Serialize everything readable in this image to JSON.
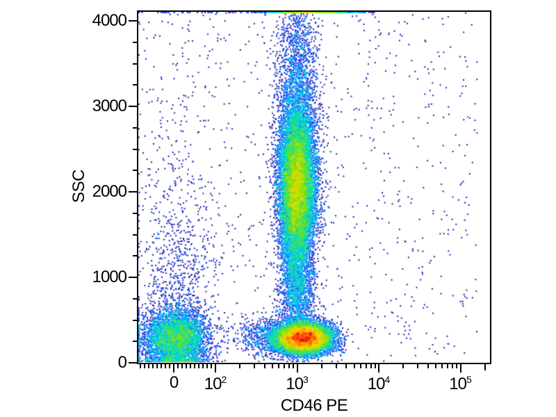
{
  "figure": {
    "background": "#ffffff",
    "frame_color": "#000000",
    "text_color": "#000000"
  },
  "chart_data": {
    "type": "scatter",
    "subtype": "flow-cytometry-pseudocolor-density-plot",
    "title": "",
    "xlabel": "CD46 PE",
    "ylabel": "SSC",
    "grid": false,
    "legend": false,
    "x_axis": {
      "scale": "biexponential",
      "majors": [
        {
          "v": 0,
          "label": "0"
        },
        {
          "v": 100,
          "base": "10",
          "exp": "2"
        },
        {
          "v": 1000,
          "base": "10",
          "exp": "3"
        },
        {
          "v": 10000,
          "base": "10",
          "exp": "4"
        },
        {
          "v": 100000,
          "base": "10",
          "exp": "5"
        }
      ],
      "linear_minors": [
        -80,
        -70,
        -60,
        -50,
        -40,
        -30,
        -20,
        -10,
        10,
        20,
        30,
        40,
        50,
        60,
        70,
        80,
        90
      ],
      "log_minor_decades": [
        2,
        3,
        4
      ],
      "mediums": [
        200000
      ]
    },
    "y_axis": {
      "scale": "linear",
      "min": 0,
      "max": 4122,
      "majors": [
        {
          "v": 0,
          "label": "0"
        },
        {
          "v": 1000,
          "label": "1000"
        },
        {
          "v": 2000,
          "label": "2000"
        },
        {
          "v": 3000,
          "label": "3000"
        },
        {
          "v": 4000,
          "label": "4000"
        }
      ],
      "minor_step": 250
    },
    "populations": [
      {
        "name": "left-low-cluster-core",
        "n": 4200,
        "x": {
          "dist": "gauss-linear",
          "center": 5,
          "sigma": 40
        },
        "y": {
          "dist": "gauss",
          "center": 280,
          "sigma": 175
        }
      },
      {
        "name": "left-cluster-upper-tail",
        "n": 750,
        "x": {
          "dist": "gauss-linear",
          "center": 8,
          "sigma": 46
        },
        "y": {
          "dist": "gauss",
          "center": 950,
          "sigma": 550
        }
      },
      {
        "name": "left-cluster-sparse-top",
        "n": 130,
        "x": {
          "dist": "gauss-linear",
          "center": 8,
          "sigma": 55
        },
        "y": {
          "dist": "gauss",
          "center": 2500,
          "sigma": 800
        }
      },
      {
        "name": "main-column-core",
        "n": 12000,
        "x": {
          "dist": "gauss-log",
          "center": 3.0,
          "sigma": 0.115
        },
        "y": {
          "dist": "gauss",
          "center": 2060,
          "sigma": 480
        }
      },
      {
        "name": "main-column-upper",
        "n": 1600,
        "x": {
          "dist": "gauss-log",
          "center": 3.0,
          "sigma": 0.13
        },
        "y": {
          "dist": "gauss",
          "center": 3400,
          "sigma": 560
        }
      },
      {
        "name": "main-column-lower-bridge",
        "n": 1400,
        "x": {
          "dist": "gauss-log",
          "center": 3.0,
          "sigma": 0.11
        },
        "y": {
          "dist": "gauss",
          "center": 850,
          "sigma": 280
        }
      },
      {
        "name": "bottom-dense-cluster",
        "n": 8500,
        "x": {
          "dist": "gauss-log",
          "center": 3.09,
          "sigma": 0.17
        },
        "y": {
          "dist": "gauss",
          "center": 285,
          "sigma": 90
        }
      },
      {
        "name": "bottom-cluster-left-tail",
        "n": 900,
        "x": {
          "dist": "gauss-log",
          "center": 2.72,
          "sigma": 0.22
        },
        "y": {
          "dist": "gauss",
          "center": 310,
          "sigma": 110
        }
      },
      {
        "name": "background-scatter",
        "n": 800,
        "x": {
          "dist": "uniform-axis",
          "min": -85,
          "max": 160000
        },
        "y": {
          "dist": "uniform",
          "min": 0,
          "max": 4100
        }
      },
      {
        "name": "top-edge-pileup-dense",
        "n": 430,
        "x": {
          "dist": "gauss-log",
          "center": 3.2,
          "sigma": 0.28
        },
        "y": {
          "dist": "fixed",
          "value": 4122
        }
      },
      {
        "name": "top-edge-pileup-sparse",
        "n": 80,
        "x": {
          "dist": "uniform-axis",
          "min": -40,
          "max": 9000
        },
        "y": {
          "dist": "fixed",
          "value": 4122
        }
      },
      {
        "name": "right-sparse-dots",
        "n": 30,
        "x": {
          "dist": "gauss-log",
          "center": 3.75,
          "sigma": 0.3
        },
        "y": {
          "dist": "uniform",
          "min": 300,
          "max": 3600
        }
      }
    ],
    "colormap": [
      [
        0.0,
        "#10106e"
      ],
      [
        0.18,
        "#1c1cb0"
      ],
      [
        0.3,
        "#1253ff"
      ],
      [
        0.42,
        "#00a9ff"
      ],
      [
        0.52,
        "#00ddc4"
      ],
      [
        0.6,
        "#2fe070"
      ],
      [
        0.7,
        "#7fe01f"
      ],
      [
        0.78,
        "#c8e000"
      ],
      [
        0.86,
        "#ffd000"
      ],
      [
        0.93,
        "#ff8000"
      ],
      [
        1.0,
        "#ee1111"
      ]
    ]
  }
}
